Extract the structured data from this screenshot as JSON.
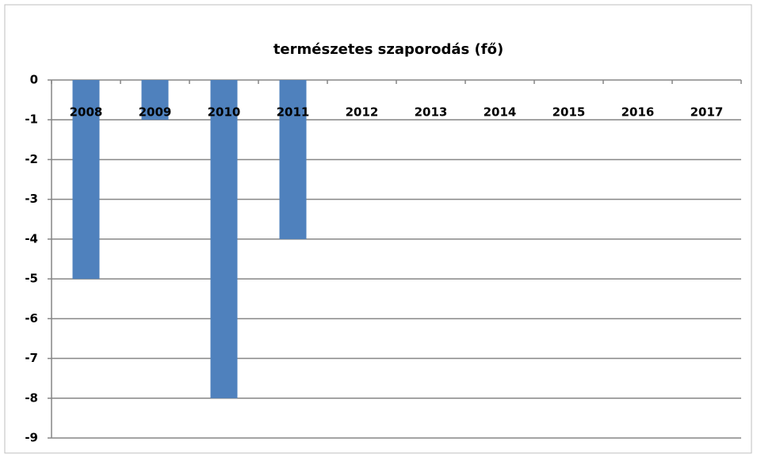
{
  "chart_data": {
    "type": "bar",
    "title": "természetes szaporodás (fő)",
    "categories": [
      "2008",
      "2009",
      "2010",
      "2011",
      "2012",
      "2013",
      "2014",
      "2015",
      "2016",
      "2017"
    ],
    "values": [
      -5,
      -1,
      -8,
      -4,
      null,
      null,
      null,
      null,
      null,
      null
    ],
    "color": "#4f81bd",
    "ylim": [
      -9,
      0
    ],
    "yticks": [
      0,
      -1,
      -2,
      -3,
      -4,
      -5,
      -6,
      -7,
      -8,
      -9
    ],
    "grid": true
  }
}
